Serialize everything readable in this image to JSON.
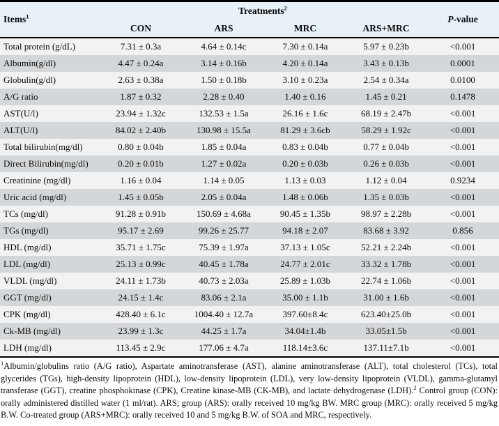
{
  "colors": {
    "header_bg": "#e8f1f8",
    "row_light": "#f2f2f2",
    "row_dark": "#d4d7d9",
    "border": "#000000"
  },
  "table": {
    "items_header": {
      "label": "Items",
      "sup": "1"
    },
    "treatments_header": {
      "label": "Treatments",
      "sup": "2"
    },
    "pvalue_header": {
      "italic": "P",
      "rest": "-value"
    },
    "treatment_columns": [
      "CON",
      "ARS",
      "MRC",
      "ARS+MRC"
    ],
    "rows": [
      {
        "item": "Total protein (g/dL)",
        "values": [
          "7.31 ± 0.3a",
          "4.64 ± 0.14c",
          "7.30 ± 0.14a",
          "5.97 ± 0.23b"
        ],
        "p": "<0.001"
      },
      {
        "item": "Albumin(g/dl)",
        "values": [
          "4.47 ± 0.24a",
          "3.14 ± 0.16b",
          "4.20 ± 0.14a",
          "3.43 ± 0.13b"
        ],
        "p": "0.0001"
      },
      {
        "item": "Globulin(g/dl)",
        "values": [
          "2.63 ± 0.38a",
          "1.50 ± 0.18b",
          "3.10 ± 0.23a",
          "2.54 ± 0.34a"
        ],
        "p": "0.0100"
      },
      {
        "item": "A/G ratio",
        "values": [
          "1.87 ± 0.32",
          "2.28 ± 0.40",
          "1.40 ± 0.16",
          "1.45 ± 0.21"
        ],
        "p": "0.1478"
      },
      {
        "item": "AST(U/l)",
        "values": [
          "23.94 ± 1.32c",
          "132.53 ± 1.5a",
          "26.16 ± 1.6c",
          "68.19 ± 2.47b"
        ],
        "p": "<0.001"
      },
      {
        "item": "ALT(U/l)",
        "values": [
          "84.02 ± 2.40b",
          "130.98 ± 15.5a",
          "81.29 ± 3.6cb",
          "58.29 ± 1.92c"
        ],
        "p": "<0.001"
      },
      {
        "item": "Total bilirubin(mg/dl)",
        "values": [
          "0.80 ± 0.04b",
          "1.85 ± 0.04a",
          "0.83 ± 0.04b",
          "0.77 ± 0.04b"
        ],
        "p": "<0.001"
      },
      {
        "item": "Direct Bilirubin(mg/dl)",
        "values": [
          "0.20 ± 0.01b",
          "1.27 ± 0.02a",
          "0.20 ± 0.03b",
          "0.26 ± 0.03b"
        ],
        "p": "<0.001"
      },
      {
        "item": "Creatinine (mg/dl)",
        "values": [
          "1.16 ± 0.04",
          "1.14 ± 0.05",
          "1.13 ± 0.03",
          "1.12 ± 0.04"
        ],
        "p": "0.9234"
      },
      {
        "item": "Uric acid (mg/dl)",
        "values": [
          "1.45 ± 0.05b",
          "2.05 ± 0.04a",
          "1.48 ± 0.06b",
          "1.35 ± 0.03b"
        ],
        "p": "<0.001"
      },
      {
        "item": "TCs (mg/dl)",
        "values": [
          "91.28 ± 0.91b",
          "150.69 ± 4.68a",
          "90.45 ± 1.35b",
          "98.97 ± 2.28b"
        ],
        "p": "<0.001"
      },
      {
        "item": "TGs (mg/dl)",
        "values": [
          "95.17 ± 2.69",
          "99.26 ± 25.77",
          "94.18 ± 2.07",
          "83.68 ± 3.92"
        ],
        "p": "0.856"
      },
      {
        "item": "HDL (mg/dl)",
        "values": [
          "35.71 ± 1.75c",
          "75.39 ± 1.97a",
          "37.13 ± 1.05c",
          "52.21 ± 2.24b"
        ],
        "p": "<0.001"
      },
      {
        "item": "LDL (mg/dl)",
        "values": [
          "25.13 ± 0.99c",
          "40.45 ± 1.78a",
          "24.77 ± 2.01c",
          "33.32 ± 1.78b"
        ],
        "p": "<0.001"
      },
      {
        "item": "VLDL (mg/dl)",
        "values": [
          "24.11 ± 1.73b",
          "40.73 ± 2.03a",
          "25.89 ± 1.03b",
          "22.74 ± 1.06b"
        ],
        "p": "<0.001"
      },
      {
        "item": "GGT (mg/dl)",
        "values": [
          "24.15 ± 1.4c",
          "83.06 ± 2.1a",
          "35.00 ± 1.1b",
          "31.00 ± 1.6b"
        ],
        "p": "<0.001"
      },
      {
        "item": "CPK (mg/dl)",
        "values": [
          "428.40 ± 6.1c",
          "1004.40 ± 12.7a",
          "397.60±8.4c",
          "623.40±25.0b"
        ],
        "p": "<0.001"
      },
      {
        "item": "Ck-MB (mg/dl)",
        "values": [
          "23.99 ± 1.3c",
          "44.25 ± 1.7a",
          "34.04±1.4b",
          "33.05±1.5b"
        ],
        "p": "<0.001"
      },
      {
        "item": "LDH (mg/dl)",
        "values": [
          "113.45 ± 2.9c",
          "177.06 ± 4.7a",
          "118.14±3.6c",
          "137.11±7.1b"
        ],
        "p": "<0.001"
      }
    ]
  },
  "footnote": {
    "sup1": "1",
    "part1": "Albumin/globulins ratio (A/G ratio), Aspartate aminotransferase (AST), alanine aminotransferase (ALT), total cholesterol (TCs), total glycerides (TGs), high-density lipoprotein (HDL), low-density lipoprotein (LDL), very low-density lipoprotein (VLDL), gamma-glutamyl transferase (GGT), creatine phosphokinase (CPK), Creatine kinase-MB (CK-MB), and lactate dehydrogenase (LDH).",
    "sup2": "2",
    "part2": " Control group (CON): orally administered distilled water (1 ml/rat). ARS; group (ARS): orally received 10 mg/kg BW. MRC group (MRC): orally received 5 mg/kg B.W. Co-treated group (ARS+MRC): orally received 10 and 5 mg/kg B.W. of SOA and MRC, respectively."
  }
}
